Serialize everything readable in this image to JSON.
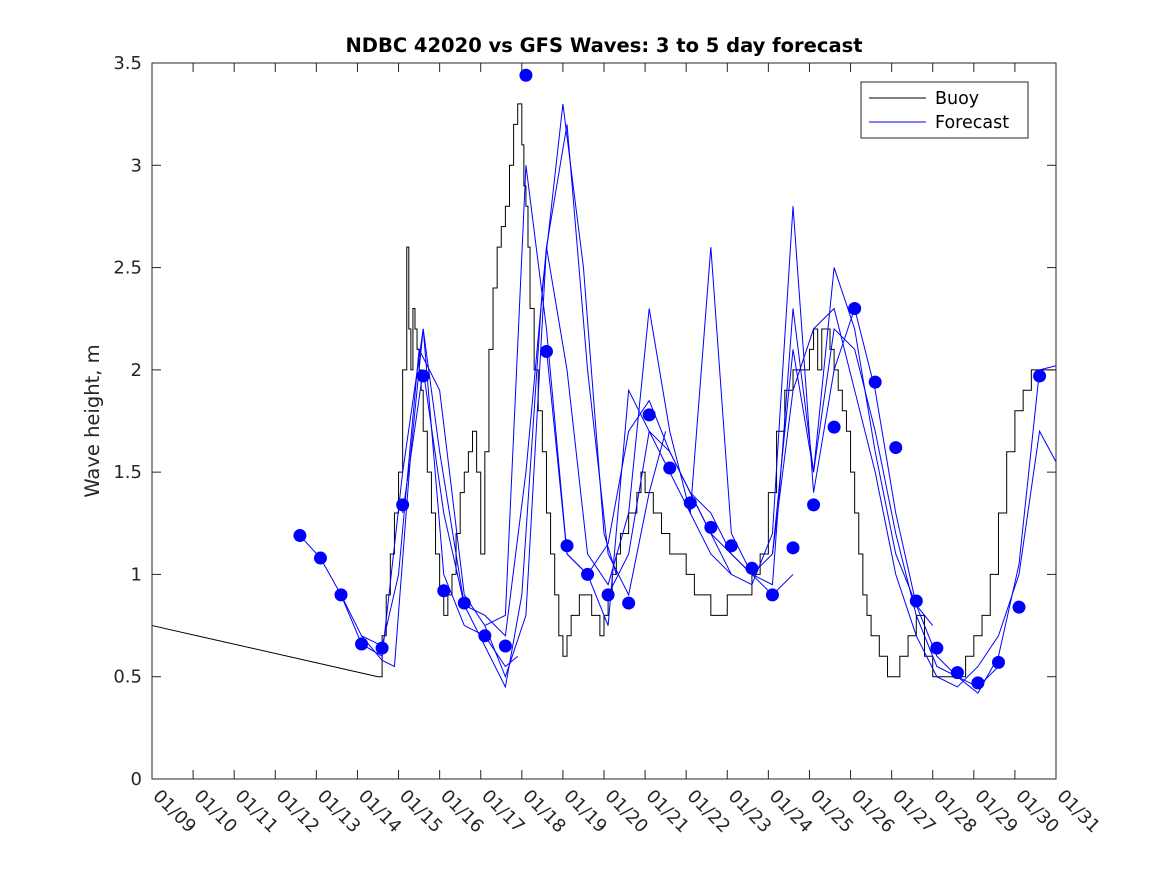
{
  "chart_data": {
    "type": "line",
    "title": "NDBC 42020 vs GFS Waves: 3 to 5 day forecast",
    "xlabel": "",
    "ylabel": "Wave height, m",
    "x_unit": "days since 01/09",
    "xlim": [
      0,
      22
    ],
    "ylim": [
      0,
      3.5
    ],
    "x_tick_values": [
      0,
      1,
      2,
      3,
      4,
      5,
      6,
      7,
      8,
      9,
      10,
      11,
      12,
      13,
      14,
      15,
      16,
      17,
      18,
      19,
      20,
      21,
      22
    ],
    "x_tick_labels": [
      "01/09",
      "01/10",
      "01/11",
      "01/12",
      "01/13",
      "01/14",
      "01/15",
      "01/16",
      "01/17",
      "01/18",
      "01/19",
      "01/20",
      "01/21",
      "01/22",
      "01/23",
      "01/24",
      "01/25",
      "01/26",
      "01/27",
      "01/28",
      "01/29",
      "01/30",
      "01/31"
    ],
    "y_tick_values": [
      0,
      0.5,
      1,
      1.5,
      2,
      2.5,
      3,
      3.5
    ],
    "y_tick_labels": [
      "0",
      "0.5",
      "1",
      "1.5",
      "2",
      "2.5",
      "3",
      "3.5"
    ],
    "legend": {
      "position": "top-right",
      "entries": [
        "Buoy",
        "Forecast"
      ]
    },
    "colors": {
      "buoy": "#000000",
      "forecast": "#0000ff",
      "axes": "#262626"
    },
    "series": [
      {
        "name": "Buoy",
        "style": "step",
        "x": [
          0,
          5.5,
          5.6,
          5.7,
          5.8,
          5.9,
          6.0,
          6.1,
          6.2,
          6.25,
          6.3,
          6.35,
          6.4,
          6.45,
          6.5,
          6.55,
          6.6,
          6.7,
          6.8,
          6.9,
          7.0,
          7.1,
          7.2,
          7.3,
          7.4,
          7.5,
          7.6,
          7.7,
          7.8,
          7.9,
          8.0,
          8.1,
          8.2,
          8.3,
          8.4,
          8.5,
          8.6,
          8.7,
          8.8,
          8.9,
          9.0,
          9.05,
          9.1,
          9.15,
          9.2,
          9.3,
          9.4,
          9.5,
          9.6,
          9.7,
          9.8,
          9.9,
          10.0,
          10.1,
          10.2,
          10.3,
          10.4,
          10.5,
          10.6,
          10.7,
          10.8,
          10.9,
          11.0,
          11.1,
          11.2,
          11.3,
          11.4,
          11.5,
          11.6,
          11.7,
          11.8,
          11.9,
          12.0,
          12.2,
          12.4,
          12.6,
          12.8,
          13.0,
          13.2,
          13.4,
          13.6,
          13.8,
          14.0,
          14.2,
          14.4,
          14.6,
          14.8,
          15.0,
          15.2,
          15.4,
          15.6,
          15.8,
          16.0,
          16.1,
          16.2,
          16.3,
          16.4,
          16.5,
          16.6,
          16.7,
          16.8,
          16.9,
          17.0,
          17.1,
          17.2,
          17.3,
          17.4,
          17.5,
          17.6,
          17.7,
          17.8,
          17.9,
          18.0,
          18.2,
          18.4,
          18.6,
          18.8,
          19.0,
          19.2,
          19.4,
          19.6,
          19.8,
          20.0,
          20.2,
          20.4,
          20.6,
          20.8,
          21.0,
          21.2,
          21.4,
          21.6,
          21.8,
          22.0
        ],
        "y": [
          0.75,
          0.5,
          0.7,
          0.9,
          1.1,
          1.3,
          1.5,
          2.0,
          2.6,
          2.2,
          2.0,
          2.3,
          2.2,
          2.1,
          2.0,
          1.9,
          1.7,
          1.5,
          1.3,
          1.1,
          0.9,
          0.8,
          0.9,
          1.0,
          1.2,
          1.4,
          1.5,
          1.6,
          1.7,
          1.5,
          1.1,
          1.6,
          2.1,
          2.4,
          2.6,
          2.7,
          2.8,
          3.0,
          3.2,
          3.3,
          3.1,
          2.9,
          2.8,
          2.6,
          2.3,
          2.0,
          1.8,
          1.6,
          1.3,
          1.1,
          0.9,
          0.7,
          0.6,
          0.7,
          0.8,
          0.8,
          0.9,
          0.9,
          0.9,
          0.8,
          0.8,
          0.7,
          0.8,
          0.9,
          1.0,
          1.1,
          1.2,
          1.2,
          1.3,
          1.3,
          1.4,
          1.5,
          1.4,
          1.3,
          1.2,
          1.1,
          1.1,
          1.0,
          0.9,
          0.9,
          0.8,
          0.8,
          0.9,
          0.9,
          0.9,
          1.0,
          1.1,
          1.4,
          1.7,
          1.9,
          2.0,
          2.0,
          2.1,
          2.2,
          2.0,
          2.2,
          2.2,
          2.1,
          2.0,
          1.9,
          1.8,
          1.7,
          1.5,
          1.3,
          1.1,
          0.9,
          0.8,
          0.7,
          0.7,
          0.6,
          0.6,
          0.5,
          0.5,
          0.6,
          0.7,
          0.8,
          0.6,
          0.5,
          0.5,
          0.5,
          0.5,
          0.6,
          0.7,
          0.8,
          1.0,
          1.3,
          1.6,
          1.8,
          1.9,
          2.0,
          2.0,
          2.0,
          2.0
        ],
        "segments": [
          {
            "x": [
              0,
              5.5
            ],
            "y": [
              0.75,
              0.5
            ]
          },
          {
            "x": [
              5.5,
              5.6,
              5.7,
              5.8,
              5.9,
              6.0,
              6.1,
              6.2,
              6.25,
              6.3,
              6.35,
              6.4,
              6.45,
              6.5,
              6.55,
              6.6,
              6.7,
              6.8,
              6.9,
              7.0,
              7.1,
              7.2,
              7.3,
              7.4,
              7.5,
              7.6,
              7.7,
              7.8,
              7.9,
              8.0,
              8.1,
              8.2,
              8.3,
              8.4,
              8.5,
              8.6,
              8.7,
              8.8,
              8.9,
              9.0,
              9.05,
              9.1,
              9.15,
              9.2,
              9.3,
              9.4,
              9.5,
              9.6,
              9.7,
              9.8,
              9.9,
              10.0,
              10.1,
              10.2,
              10.3,
              10.4,
              10.5,
              10.6,
              10.7,
              10.8,
              10.9,
              11.0,
              11.1,
              11.2,
              11.3,
              11.4,
              11.5,
              11.6,
              11.7,
              11.8,
              11.9,
              12.0,
              12.2,
              12.4,
              12.6,
              12.8,
              13.0,
              13.2,
              13.4,
              13.6,
              13.8,
              14.0,
              14.2,
              14.4,
              14.6,
              14.8,
              15.0,
              15.2,
              15.4,
              15.6,
              15.8,
              16.0,
              16.1,
              16.2,
              16.3,
              16.4,
              16.5,
              16.6,
              16.7,
              16.8,
              16.9,
              17.0,
              17.1,
              17.2,
              17.3,
              17.4,
              17.5,
              17.6,
              17.7,
              17.8,
              17.9,
              18.0,
              18.2,
              18.4,
              18.6,
              18.8,
              19.0,
              19.2,
              19.4,
              19.6,
              19.8,
              20.0,
              20.2,
              20.4,
              20.6,
              20.8,
              21.0,
              21.2,
              21.4,
              21.6,
              21.8,
              22.0
            ],
            "y": [
              0.5,
              0.7,
              0.9,
              1.1,
              1.3,
              1.5,
              2.0,
              2.6,
              2.2,
              2.0,
              2.3,
              2.2,
              2.1,
              2.0,
              1.9,
              1.7,
              1.5,
              1.3,
              1.1,
              0.9,
              0.8,
              0.9,
              1.0,
              1.2,
              1.4,
              1.5,
              1.6,
              1.7,
              1.5,
              1.1,
              1.6,
              2.1,
              2.4,
              2.6,
              2.7,
              2.8,
              3.0,
              3.2,
              3.3,
              3.1,
              2.9,
              2.8,
              2.6,
              2.3,
              2.0,
              1.8,
              1.6,
              1.3,
              1.1,
              0.9,
              0.7,
              0.6,
              0.7,
              0.8,
              0.8,
              0.9,
              0.9,
              0.9,
              0.8,
              0.8,
              0.7,
              0.8,
              0.9,
              1.0,
              1.1,
              1.2,
              1.2,
              1.3,
              1.3,
              1.4,
              1.5,
              1.4,
              1.3,
              1.2,
              1.1,
              1.1,
              1.0,
              0.9,
              0.9,
              0.8,
              0.8,
              0.9,
              0.9,
              0.9,
              1.0,
              1.1,
              1.4,
              1.7,
              1.9,
              2.0,
              2.0,
              2.1,
              2.2,
              2.0,
              2.2,
              2.2,
              2.1,
              2.0,
              1.9,
              1.8,
              1.7,
              1.5,
              1.3,
              1.1,
              0.9,
              0.8,
              0.7,
              0.7,
              0.6,
              0.6,
              0.5,
              0.5,
              0.6,
              0.7,
              0.8,
              0.6,
              0.5,
              0.5,
              0.5,
              0.5,
              0.6,
              0.7,
              0.8,
              1.0,
              1.3,
              1.6,
              1.8,
              1.9,
              2.0,
              2.0,
              2.0,
              2.0
            ]
          }
        ]
      },
      {
        "name": "Forecast",
        "style": "lines",
        "runs": [
          {
            "x": [
              3.6,
              4.1,
              4.6,
              5.1,
              5.6,
              6.1,
              6.6,
              7.1,
              7.6,
              8.1,
              8.6,
              8.9
            ],
            "y": [
              1.19,
              1.08,
              0.9,
              0.66,
              0.6,
              1.5,
              2.2,
              1.0,
              0.75,
              0.7,
              0.55,
              0.6
            ]
          },
          {
            "x": [
              4.6,
              5.1,
              5.6,
              5.9,
              6.3,
              6.6,
              7.0,
              7.6,
              8.1,
              8.6,
              9.0,
              9.5,
              10.0,
              10.5,
              11.0,
              11.3
            ],
            "y": [
              0.9,
              0.7,
              0.58,
              0.55,
              1.6,
              2.2,
              1.6,
              0.85,
              0.65,
              0.45,
              0.9,
              2.4,
              3.3,
              2.5,
              1.2,
              1.0
            ]
          },
          {
            "x": [
              5.1,
              5.6,
              6.0,
              6.5,
              7.0,
              7.6,
              8.1,
              8.6,
              9.1,
              9.6,
              10.1,
              10.6,
              11.1,
              11.6,
              12.1,
              12.5
            ],
            "y": [
              0.7,
              0.65,
              1.0,
              2.1,
              1.9,
              0.9,
              0.75,
              0.5,
              0.8,
              2.6,
              3.2,
              2.0,
              1.1,
              0.9,
              1.4,
              1.7
            ]
          },
          {
            "x": [
              6.1,
              6.6,
              7.1,
              7.6,
              8.1,
              8.6,
              9.1,
              9.6,
              10.1,
              10.6,
              11.1,
              11.6,
              12.1,
              12.6,
              13.1,
              13.6,
              14.1
            ],
            "y": [
              1.3,
              2.0,
              1.3,
              0.85,
              0.8,
              0.7,
              1.5,
              2.6,
              2.0,
              1.1,
              0.95,
              1.3,
              2.3,
              1.7,
              1.3,
              1.1,
              1.0
            ]
          },
          {
            "x": [
              8.1,
              8.6,
              9.1,
              9.6,
              10.1,
              10.6,
              11.1,
              11.6,
              12.1,
              12.6,
              13.1,
              13.6,
              14.1,
              14.6,
              15.1,
              15.6
            ],
            "y": [
              0.75,
              0.8,
              3.0,
              2.2,
              1.1,
              1.0,
              1.15,
              1.7,
              1.85,
              1.6,
              1.4,
              1.3,
              1.1,
              1.0,
              0.9,
              1.0
            ]
          },
          {
            "x": [
              9.6,
              10.1,
              10.6,
              11.1,
              11.6,
              12.1,
              12.6,
              13.1,
              13.6,
              14.1,
              14.6,
              15.1,
              15.6,
              16.1,
              16.6,
              17.1
            ],
            "y": [
              2.1,
              1.1,
              1.0,
              0.75,
              1.9,
              1.7,
              1.6,
              1.4,
              1.2,
              1.0,
              0.95,
              1.2,
              2.8,
              1.4,
              2.0,
              2.3
            ]
          },
          {
            "x": [
              11.1,
              11.6,
              12.1,
              12.6,
              13.1,
              13.6,
              14.1,
              14.6,
              15.1,
              15.6,
              16.1,
              16.6,
              17.1,
              17.6,
              18.1,
              18.6,
              19.0
            ],
            "y": [
              0.9,
              1.1,
              1.7,
              1.5,
              1.3,
              2.6,
              1.2,
              1.0,
              0.95,
              2.3,
              1.5,
              2.5,
              2.2,
              1.6,
              1.1,
              0.85,
              0.75
            ]
          },
          {
            "x": [
              13.1,
              13.6,
              14.1,
              14.6,
              15.1,
              15.6,
              16.1,
              16.6,
              17.1,
              17.6,
              18.1,
              18.6,
              19.1,
              19.6,
              20.1,
              20.6
            ],
            "y": [
              1.4,
              1.2,
              1.1,
              1.0,
              1.1,
              2.1,
              1.5,
              2.2,
              2.1,
              1.7,
              1.2,
              0.8,
              0.55,
              0.5,
              0.45,
              0.55
            ]
          },
          {
            "x": [
              15.1,
              15.6,
              16.1,
              16.6,
              17.1,
              17.6,
              18.1,
              18.6,
              19.1,
              19.6,
              20.1,
              20.6,
              21.1,
              21.6,
              22.0
            ],
            "y": [
              1.1,
              1.9,
              2.2,
              2.3,
              1.9,
              1.5,
              1.0,
              0.7,
              0.5,
              0.45,
              0.55,
              0.7,
              1.0,
              1.7,
              1.55
            ]
          },
          {
            "x": [
              17.1,
              17.6,
              18.1,
              18.6,
              19.1,
              19.6,
              20.1,
              20.6,
              21.1,
              21.6,
              22.0
            ],
            "y": [
              2.3,
              1.9,
              1.3,
              0.85,
              0.6,
              0.5,
              0.42,
              0.6,
              1.05,
              2.0,
              2.02
            ]
          }
        ]
      },
      {
        "name": "Forecast markers",
        "style": "markers",
        "x": [
          3.6,
          4.1,
          4.6,
          5.1,
          5.6,
          6.1,
          6.6,
          7.1,
          7.6,
          8.1,
          8.6,
          9.1,
          9.6,
          10.1,
          10.6,
          11.1,
          11.6,
          12.1,
          12.6,
          13.1,
          13.6,
          14.1,
          14.6,
          15.1,
          15.6,
          16.1,
          16.6,
          17.1,
          17.6,
          18.1,
          18.6,
          19.1,
          19.6,
          20.1,
          20.6,
          21.1,
          21.6
        ],
        "y": [
          1.19,
          1.08,
          0.9,
          0.66,
          0.64,
          1.34,
          1.97,
          0.92,
          0.86,
          0.7,
          0.65,
          3.44,
          2.09,
          1.14,
          1.0,
          0.9,
          0.86,
          1.78,
          1.52,
          1.35,
          1.23,
          1.14,
          1.03,
          0.9,
          1.13,
          1.34,
          1.72,
          2.3,
          1.94,
          1.62,
          0.87,
          0.64,
          0.52,
          0.47,
          0.57,
          0.84,
          1.97
        ]
      }
    ]
  }
}
